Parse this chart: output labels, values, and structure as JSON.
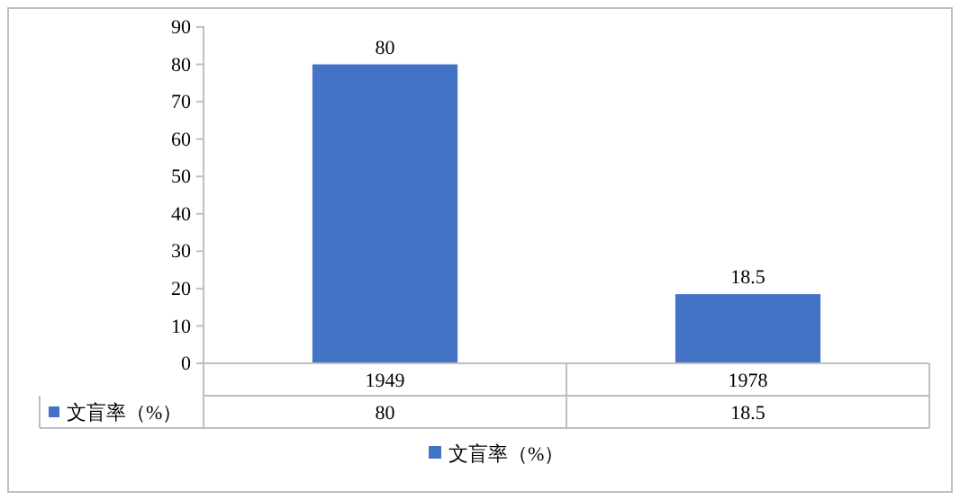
{
  "chart_data": {
    "type": "bar",
    "categories": [
      "1949",
      "1978"
    ],
    "series": [
      {
        "name": "文盲率（%）",
        "color": "#4472c4",
        "values": [
          80,
          18.5
        ],
        "value_labels": [
          "80",
          "18.5"
        ]
      }
    ],
    "ylim": [
      0,
      90
    ],
    "yticks": [
      0,
      10,
      20,
      30,
      40,
      50,
      60,
      70,
      80,
      90
    ],
    "grid": false,
    "legend": "bottom"
  }
}
